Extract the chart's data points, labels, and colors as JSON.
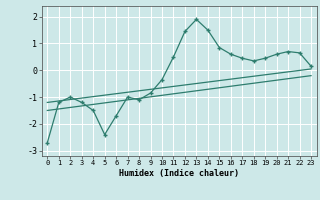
{
  "x_data": [
    0,
    1,
    2,
    3,
    4,
    5,
    6,
    7,
    8,
    9,
    10,
    11,
    12,
    13,
    14,
    15,
    16,
    17,
    18,
    19,
    20,
    21,
    22,
    23
  ],
  "y_data": [
    -2.7,
    -1.2,
    -1.0,
    -1.2,
    -1.5,
    -2.4,
    -1.7,
    -1.0,
    -1.1,
    -0.85,
    -0.35,
    0.5,
    1.45,
    1.9,
    1.5,
    0.85,
    0.6,
    0.45,
    0.35,
    0.45,
    0.6,
    0.7,
    0.65,
    0.15
  ],
  "trend_x": [
    0,
    23
  ],
  "trend_y": [
    -1.2,
    0.05
  ],
  "trend2_x": [
    0,
    23
  ],
  "trend2_y": [
    -1.5,
    -0.2
  ],
  "line_color": "#2e7d6e",
  "bg_color": "#cde8e8",
  "grid_color": "#b8d8d8",
  "xlabel": "Humidex (Indice chaleur)",
  "ylim": [
    -3.2,
    2.4
  ],
  "xlim": [
    -0.5,
    23.5
  ]
}
